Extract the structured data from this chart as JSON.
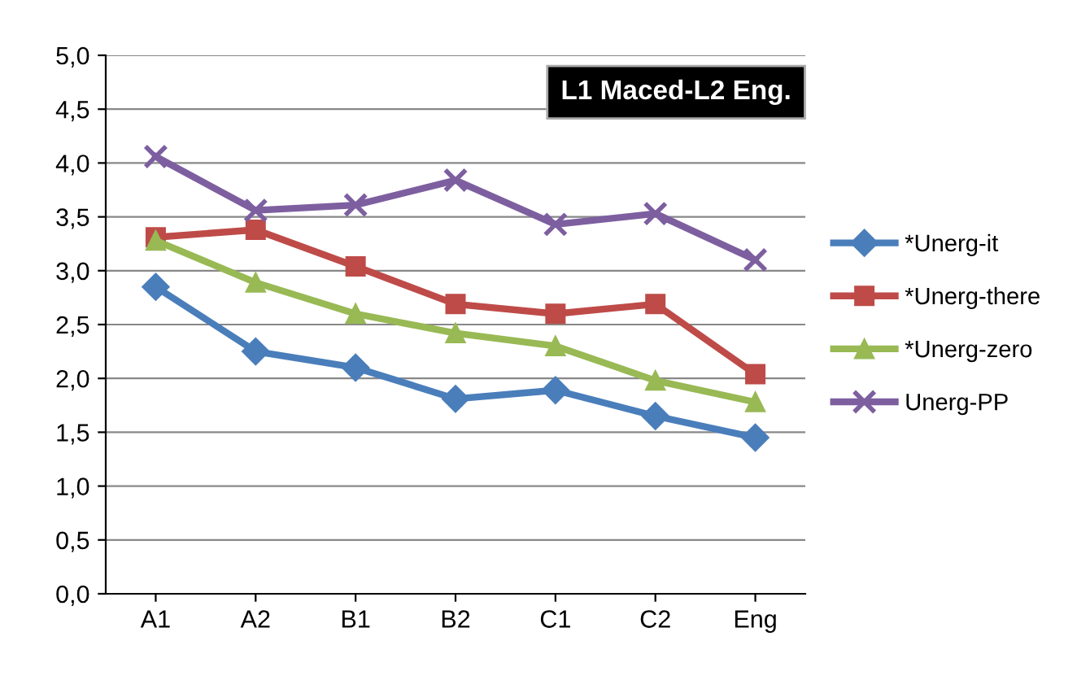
{
  "chart_data": {
    "type": "line",
    "title": "L1 Maced-L2 Eng.",
    "categories": [
      "A1",
      "A2",
      "B1",
      "B2",
      "C1",
      "C2",
      "Eng"
    ],
    "series": [
      {
        "name": "*Unerg-it",
        "color": "#4a7ebb",
        "marker": "diamond",
        "values": [
          2.85,
          2.25,
          2.1,
          1.81,
          1.89,
          1.65,
          1.45
        ]
      },
      {
        "name": "*Unerg-there",
        "color": "#be4b48",
        "marker": "square",
        "values": [
          3.31,
          3.38,
          3.04,
          2.69,
          2.6,
          2.69,
          2.04
        ]
      },
      {
        "name": "*Unerg-zero",
        "color": "#98b954",
        "marker": "triangle",
        "values": [
          3.28,
          2.89,
          2.6,
          2.42,
          2.3,
          1.98,
          1.78
        ]
      },
      {
        "name": "Unerg-PP",
        "color": "#7d5fa0",
        "marker": "cross",
        "values": [
          4.06,
          3.56,
          3.61,
          3.84,
          3.43,
          3.53,
          3.1
        ]
      }
    ],
    "ylim": [
      0,
      5
    ],
    "yticks": [
      {
        "value": 0,
        "label": "0,0"
      },
      {
        "value": 0.5,
        "label": "0,5"
      },
      {
        "value": 1,
        "label": "1,0"
      },
      {
        "value": 1.5,
        "label": "1,5"
      },
      {
        "value": 2,
        "label": "2,0"
      },
      {
        "value": 2.5,
        "label": "2,5"
      },
      {
        "value": 3,
        "label": "3,0"
      },
      {
        "value": 3.5,
        "label": "3,5"
      },
      {
        "value": 4,
        "label": "4,0"
      },
      {
        "value": 4.5,
        "label": "4,5"
      },
      {
        "value": 5,
        "label": "5,0"
      }
    ],
    "grid": "y",
    "legend": "right",
    "line_style": "solid"
  }
}
